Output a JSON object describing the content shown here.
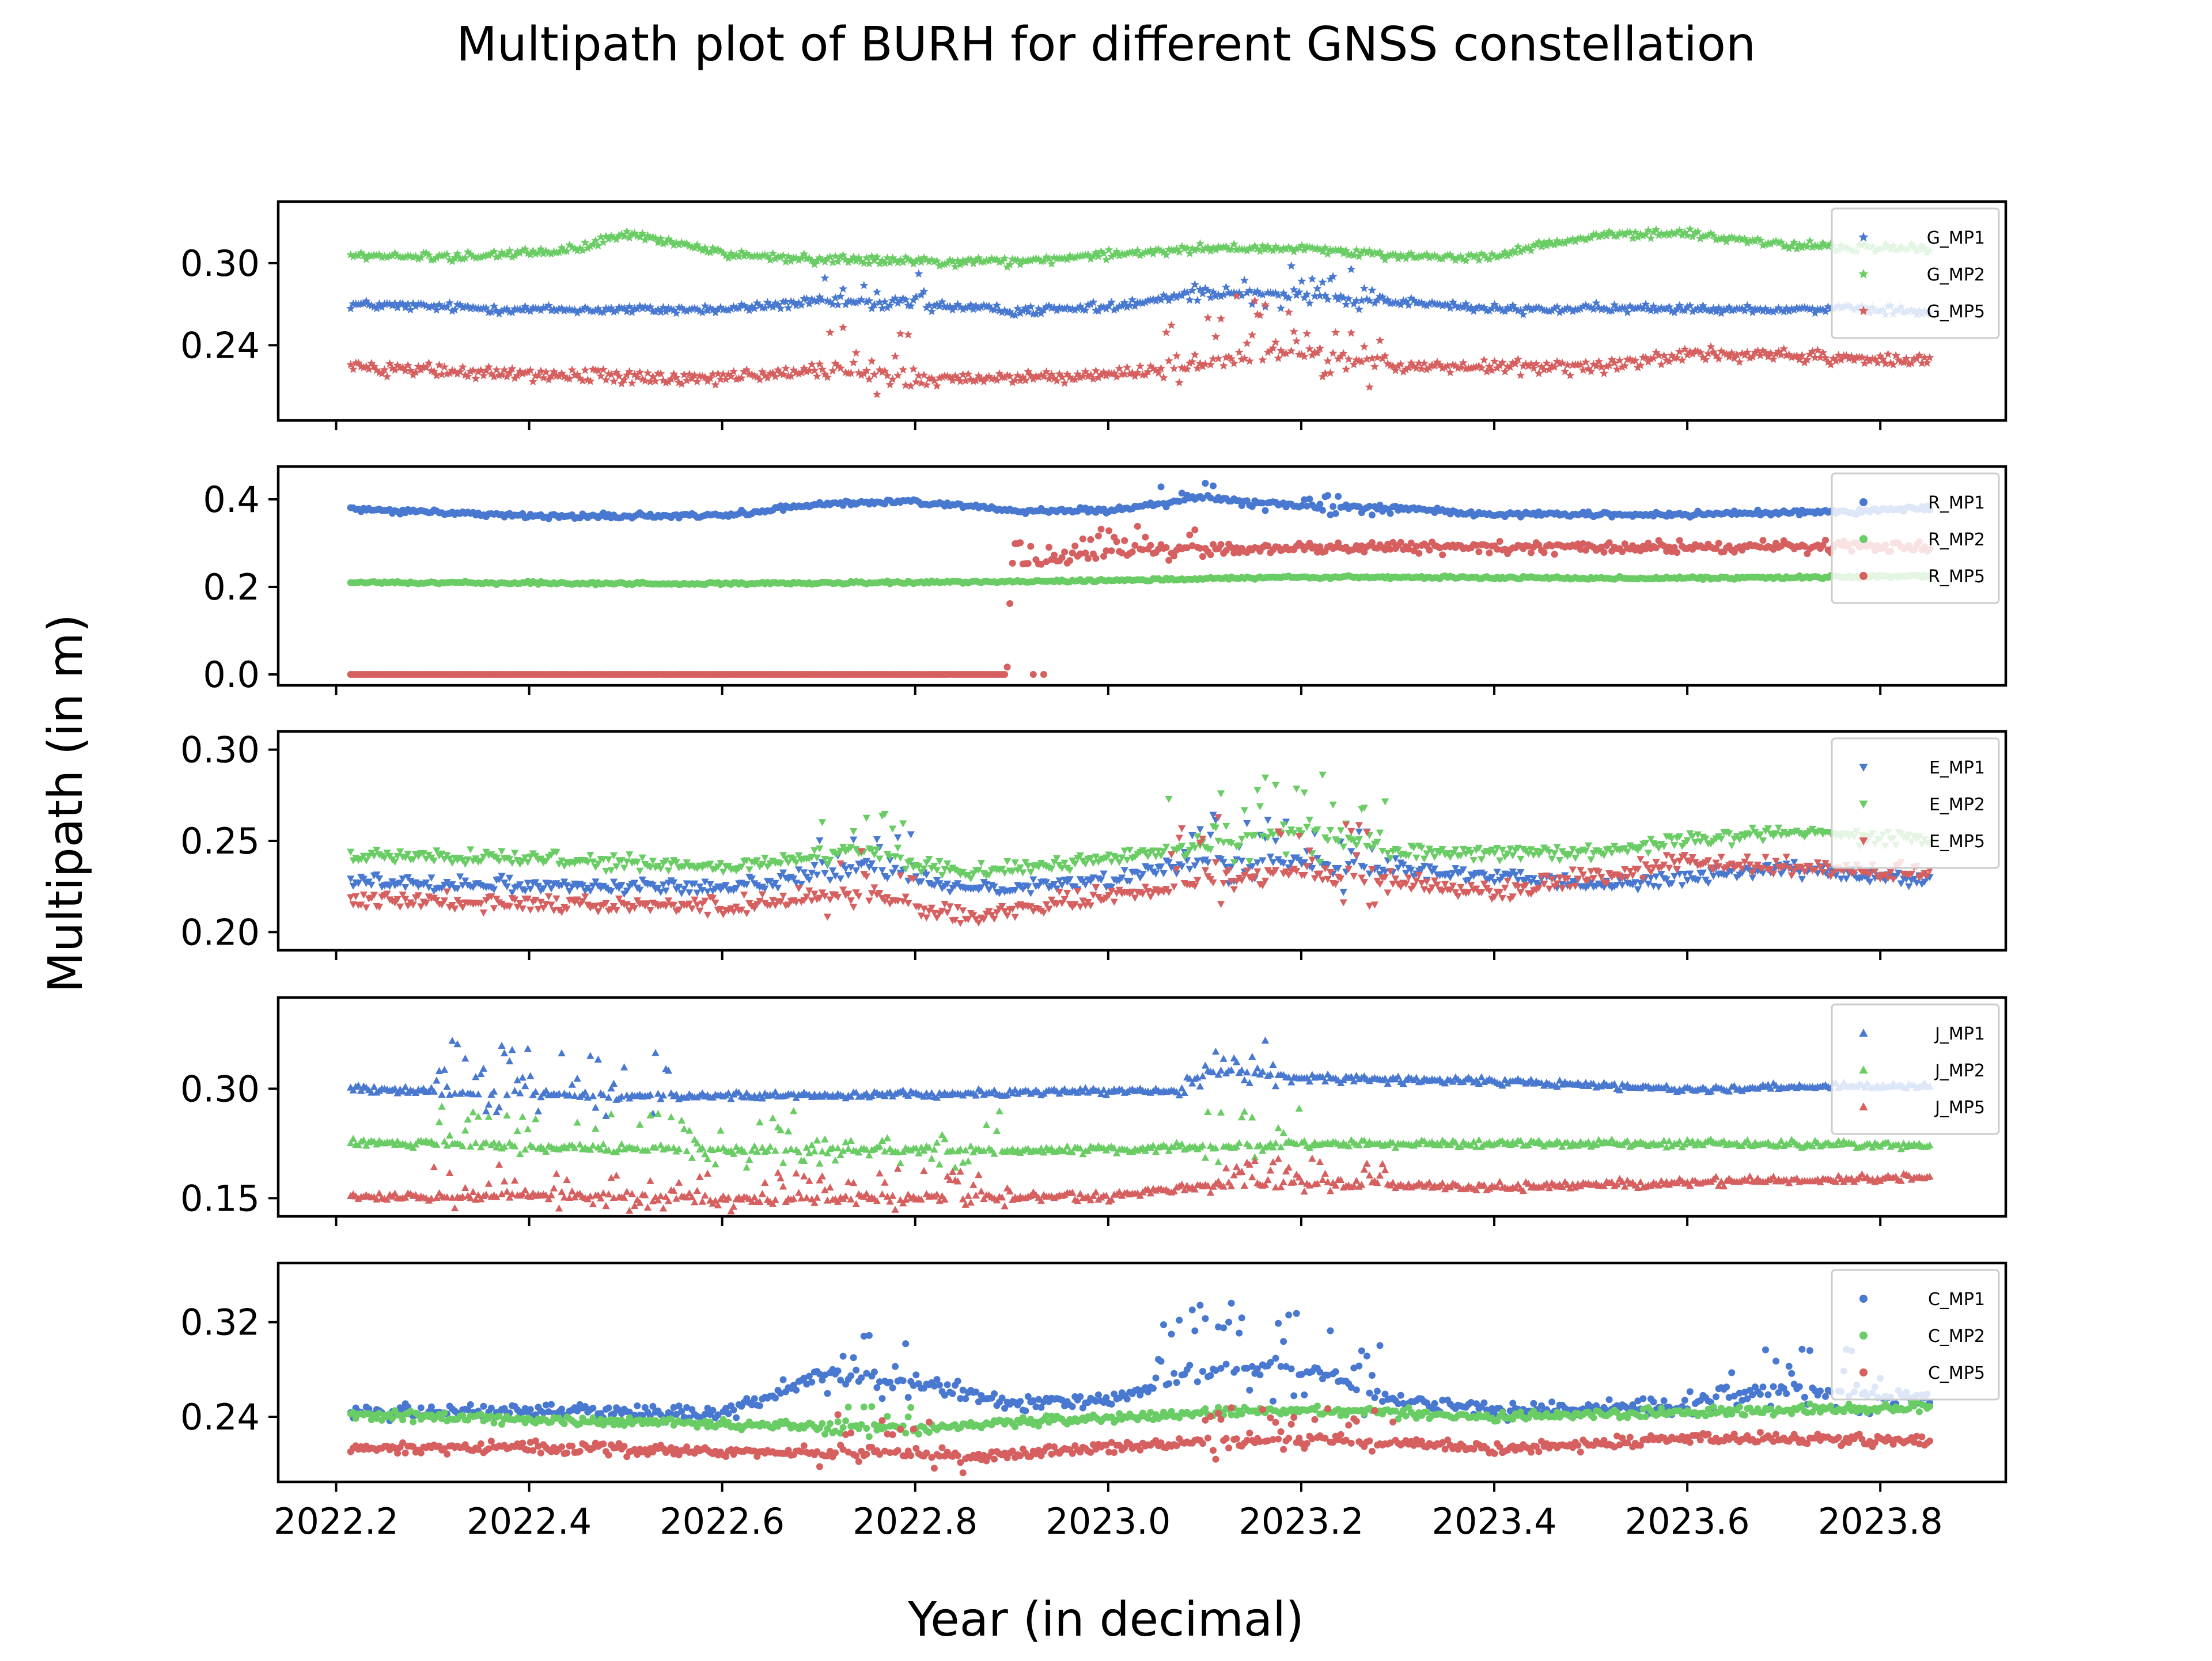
{
  "chart_data": {
    "type": "scatter",
    "title": "Multipath plot of BURH for different GNSS constellation",
    "xlabel": "Year (in decimal)",
    "ylabel": "Multipath (in m)",
    "shared_x": true,
    "xlim": [
      2022.14,
      2023.93
    ],
    "xticks": [
      2022.2,
      2022.4,
      2022.6,
      2022.8,
      2023.0,
      2023.2,
      2023.4,
      2023.6,
      2023.8
    ],
    "xtick_labels": [
      "2022.2",
      "2022.4",
      "2022.6",
      "2022.8",
      "2023.0",
      "2023.2",
      "2023.4",
      "2023.6",
      "2023.8"
    ],
    "x_start": 2022.215,
    "x_end": 2023.852,
    "sample_step": 0.0027,
    "series_colors": {
      "MP1": "#4878d0",
      "MP2": "#6acc64",
      "MP5": "#d65f5f"
    },
    "legend_position": "upper right",
    "panels": [
      {
        "constellation": "G",
        "marker": "star",
        "ylim": [
          0.185,
          0.345
        ],
        "yticks": [
          0.24,
          0.3
        ],
        "ytick_labels": [
          "0.24",
          "0.30"
        ],
        "legend": [
          "G_MP1",
          "G_MP2",
          "G_MP5"
        ],
        "series": [
          {
            "name": "G_MP1",
            "x": [
              2022.2,
              2022.4,
              2022.6,
              2022.7,
              2022.8,
              2022.9,
              2023.0,
              2023.1,
              2023.2,
              2023.3,
              2023.4,
              2023.6,
              2023.8,
              2023.85
            ],
            "y": [
              0.27,
              0.266,
              0.266,
              0.272,
              0.27,
              0.265,
              0.268,
              0.28,
              0.276,
              0.272,
              0.266,
              0.267,
              0.266,
              0.264
            ],
            "noise": 0.004,
            "spike_zones": [
              [
                2022.7,
                2022.83,
                0.014
              ],
              [
                2023.08,
                2023.3,
                0.02
              ]
            ]
          },
          {
            "name": "G_MP2",
            "x": [
              2022.2,
              2022.35,
              2022.45,
              2022.5,
              2022.6,
              2022.7,
              2022.8,
              2022.9,
              2023.0,
              2023.1,
              2023.2,
              2023.3,
              2023.4,
              2023.5,
              2023.6,
              2023.7,
              2023.85
            ],
            "y": [
              0.305,
              0.305,
              0.31,
              0.322,
              0.307,
              0.303,
              0.302,
              0.301,
              0.306,
              0.311,
              0.311,
              0.305,
              0.305,
              0.32,
              0.322,
              0.313,
              0.31
            ],
            "noise": 0.004,
            "spike_zones": []
          },
          {
            "name": "G_MP5",
            "x": [
              2022.2,
              2022.4,
              2022.6,
              2022.7,
              2022.8,
              2022.9,
              2023.0,
              2023.1,
              2023.2,
              2023.3,
              2023.5,
              2023.6,
              2023.7,
              2023.85
            ],
            "y": [
              0.225,
              0.218,
              0.216,
              0.222,
              0.214,
              0.216,
              0.218,
              0.228,
              0.236,
              0.224,
              0.224,
              0.234,
              0.232,
              0.228
            ],
            "noise": 0.006,
            "spike_zones": [
              [
                2022.7,
                2022.8,
                0.025
              ],
              [
                2023.05,
                2023.3,
                0.03
              ]
            ]
          }
        ]
      },
      {
        "constellation": "R",
        "marker": "circle",
        "ylim": [
          -0.025,
          0.475
        ],
        "yticks": [
          0.0,
          0.2,
          0.4
        ],
        "ytick_labels": [
          "0.0",
          "0.2",
          "0.4"
        ],
        "legend": [
          "R_MP1",
          "R_MP2",
          "R_MP5"
        ],
        "series": [
          {
            "name": "R_MP1",
            "x": [
              2022.2,
              2022.4,
              2022.6,
              2022.7,
              2022.8,
              2022.9,
              2023.0,
              2023.1,
              2023.2,
              2023.3,
              2023.4,
              2023.6,
              2023.8,
              2023.85
            ],
            "y": [
              0.38,
              0.362,
              0.362,
              0.39,
              0.395,
              0.375,
              0.375,
              0.405,
              0.385,
              0.38,
              0.365,
              0.365,
              0.375,
              0.38
            ],
            "noise": 0.007,
            "spike_zones": [
              [
                2023.05,
                2023.3,
                0.025
              ]
            ]
          },
          {
            "name": "R_MP2",
            "x": [
              2022.2,
              2022.6,
              2022.8,
              2023.0,
              2023.2,
              2023.6,
              2023.85
            ],
            "y": [
              0.21,
              0.207,
              0.21,
              0.215,
              0.222,
              0.22,
              0.224
            ],
            "noise": 0.004,
            "spike_zones": []
          },
          {
            "name": "R_MP5",
            "x": [
              2022.2,
              2022.895,
              2022.9,
              2023.0,
              2023.2,
              2023.4,
              2023.6,
              2023.85
            ],
            "y": [
              0.0,
              0.0,
              0.25,
              0.28,
              0.29,
              0.29,
              0.29,
              0.295
            ],
            "noise": 0.016,
            "spike_zones": [
              [
                2022.9,
                2023.1,
                0.04
              ]
            ]
          }
        ]
      },
      {
        "constellation": "E",
        "marker": "triangle-down",
        "ylim": [
          0.19,
          0.31
        ],
        "yticks": [
          0.2,
          0.25,
          0.3
        ],
        "ytick_labels": [
          "0.20",
          "0.25",
          "0.30"
        ],
        "legend": [
          "E_MP1",
          "E_MP2",
          "E_MP5"
        ],
        "series": [
          {
            "name": "E_MP1",
            "x": [
              2022.2,
              2022.4,
              2022.6,
              2022.75,
              2022.85,
              2023.0,
              2023.1,
              2023.2,
              2023.3,
              2023.5,
              2023.7,
              2023.85
            ],
            "y": [
              0.228,
              0.226,
              0.224,
              0.236,
              0.224,
              0.228,
              0.24,
              0.238,
              0.235,
              0.226,
              0.235,
              0.227
            ],
            "noise": 0.005,
            "spike_zones": [
              [
                2022.7,
                2022.8,
                0.016
              ],
              [
                2023.05,
                2023.3,
                0.02
              ]
            ]
          },
          {
            "name": "E_MP2",
            "x": [
              2022.2,
              2022.4,
              2022.6,
              2022.75,
              2022.85,
              2023.0,
              2023.2,
              2023.3,
              2023.5,
              2023.7,
              2023.85
            ],
            "y": [
              0.242,
              0.24,
              0.235,
              0.245,
              0.232,
              0.24,
              0.256,
              0.244,
              0.244,
              0.256,
              0.25
            ],
            "noise": 0.005,
            "spike_zones": [
              [
                2022.7,
                2022.8,
                0.016
              ],
              [
                2023.05,
                2023.3,
                0.025
              ]
            ]
          },
          {
            "name": "E_MP5",
            "x": [
              2022.2,
              2022.4,
              2022.6,
              2022.75,
              2022.85,
              2023.0,
              2023.2,
              2023.4,
              2023.6,
              2023.85
            ],
            "y": [
              0.218,
              0.216,
              0.214,
              0.222,
              0.207,
              0.22,
              0.234,
              0.222,
              0.238,
              0.232
            ],
            "noise": 0.006,
            "spike_zones": [
              [
                2022.7,
                2022.8,
                0.018
              ],
              [
                2023.05,
                2023.3,
                0.025
              ]
            ]
          }
        ]
      },
      {
        "constellation": "J",
        "marker": "triangle-up",
        "ylim": [
          0.125,
          0.425
        ],
        "yticks": [
          0.15,
          0.3
        ],
        "ytick_labels": [
          "0.15",
          "0.30"
        ],
        "legend": [
          "J_MP1",
          "J_MP2",
          "J_MP5"
        ],
        "series": [
          {
            "name": "J_MP1",
            "x": [
              2022.2,
              2022.4,
              2022.6,
              2022.8,
              2023.0,
              2023.08,
              2023.1,
              2023.2,
              2023.4,
              2023.5,
              2023.6,
              2023.85
            ],
            "y": [
              0.3,
              0.292,
              0.29,
              0.292,
              0.297,
              0.297,
              0.325,
              0.315,
              0.31,
              0.305,
              0.3,
              0.305
            ],
            "noise": 0.006,
            "spike_zones": [
              [
                2022.3,
                2022.55,
                0.05
              ],
              [
                2023.08,
                2023.2,
                0.03
              ]
            ]
          },
          {
            "name": "J_MP2",
            "x": [
              2022.2,
              2022.4,
              2022.6,
              2022.8,
              2023.0,
              2023.2,
              2023.6,
              2023.85
            ],
            "y": [
              0.228,
              0.22,
              0.216,
              0.216,
              0.216,
              0.225,
              0.225,
              0.223
            ],
            "noise": 0.006,
            "spike_zones": [
              [
                2022.3,
                2022.9,
                0.04
              ],
              [
                2023.1,
                2023.2,
                0.035
              ]
            ]
          },
          {
            "name": "J_MP5",
            "x": [
              2022.2,
              2022.4,
              2022.6,
              2022.8,
              2023.0,
              2023.1,
              2023.2,
              2023.4,
              2023.6,
              2023.85
            ],
            "y": [
              0.15,
              0.155,
              0.148,
              0.15,
              0.152,
              0.168,
              0.17,
              0.165,
              0.172,
              0.178
            ],
            "noise": 0.007,
            "spike_zones": [
              [
                2022.3,
                2022.9,
                0.03
              ],
              [
                2023.1,
                2023.3,
                0.025
              ]
            ]
          }
        ]
      },
      {
        "constellation": "C",
        "marker": "circle",
        "ylim": [
          0.185,
          0.37
        ],
        "yticks": [
          0.24,
          0.32
        ],
        "ytick_labels": [
          "0.24",
          "0.32"
        ],
        "legend": [
          "C_MP1",
          "C_MP2",
          "C_MP5"
        ],
        "series": [
          {
            "name": "C_MP1",
            "x": [
              2022.2,
              2022.4,
              2022.6,
              2022.7,
              2022.8,
              2022.9,
              2023.0,
              2023.1,
              2023.2,
              2023.3,
              2023.4,
              2023.6,
              2023.7,
              2023.85
            ],
            "y": [
              0.245,
              0.245,
              0.242,
              0.275,
              0.27,
              0.25,
              0.255,
              0.28,
              0.28,
              0.255,
              0.245,
              0.25,
              0.265,
              0.255
            ],
            "noise": 0.008,
            "spike_zones": [
              [
                2022.7,
                2022.8,
                0.03
              ],
              [
                2023.05,
                2023.3,
                0.045
              ],
              [
                2023.6,
                2023.8,
                0.03
              ]
            ]
          },
          {
            "name": "C_MP2",
            "x": [
              2022.2,
              2022.4,
              2022.6,
              2022.8,
              2023.0,
              2023.2,
              2023.4,
              2023.6,
              2023.85
            ],
            "y": [
              0.242,
              0.238,
              0.234,
              0.23,
              0.24,
              0.246,
              0.24,
              0.244,
              0.248
            ],
            "noise": 0.005,
            "spike_zones": [
              [
                2022.7,
                2022.8,
                0.015
              ]
            ]
          },
          {
            "name": "C_MP5",
            "x": [
              2022.2,
              2022.4,
              2022.6,
              2022.75,
              2022.85,
              2023.0,
              2023.2,
              2023.4,
              2023.6,
              2023.85
            ],
            "y": [
              0.213,
              0.215,
              0.21,
              0.21,
              0.205,
              0.215,
              0.222,
              0.212,
              0.222,
              0.22
            ],
            "noise": 0.006,
            "spike_zones": [
              [
                2022.7,
                2022.85,
                0.02
              ],
              [
                2023.1,
                2023.3,
                0.02
              ]
            ]
          }
        ]
      }
    ]
  }
}
